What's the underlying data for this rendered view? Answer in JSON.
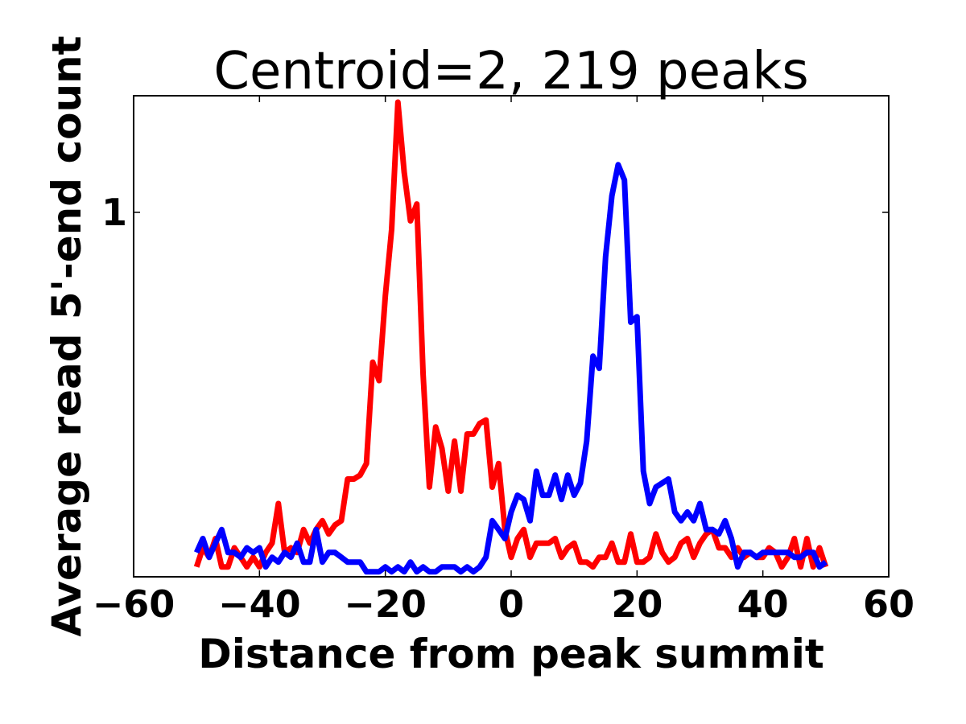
{
  "chart_data": {
    "type": "line",
    "title": "Centroid=2, 219 peaks",
    "xlabel": "Distance from peak summit",
    "ylabel": "Average read 5'-end count",
    "xlim": [
      -60,
      60
    ],
    "ylim": [
      0.42,
      1.32
    ],
    "y_scale": "log",
    "xticks": [
      -60,
      -40,
      -20,
      0,
      20,
      40,
      60
    ],
    "xtick_labels": [
      "−60",
      "−40",
      "−20",
      "0",
      "20",
      "40",
      "60"
    ],
    "yticks": [
      1
    ],
    "ytick_labels": [
      "1"
    ],
    "grid": false,
    "x": [
      -50,
      -49,
      -48,
      -47,
      -46,
      -45,
      -44,
      -43,
      -42,
      -41,
      -40,
      -39,
      -38,
      -37,
      -36,
      -35,
      -34,
      -33,
      -32,
      -31,
      -30,
      -29,
      -28,
      -27,
      -26,
      -25,
      -24,
      -23,
      -22,
      -21,
      -20,
      -19,
      -18,
      -17,
      -16,
      -15,
      -14,
      -13,
      -12,
      -11,
      -10,
      -9,
      -8,
      -7,
      -6,
      -5,
      -4,
      -3,
      -2,
      -1,
      0,
      1,
      2,
      3,
      4,
      5,
      6,
      7,
      8,
      9,
      10,
      11,
      12,
      13,
      14,
      15,
      16,
      17,
      18,
      19,
      20,
      21,
      22,
      23,
      24,
      25,
      26,
      27,
      28,
      29,
      30,
      31,
      32,
      33,
      34,
      35,
      36,
      37,
      38,
      39,
      40,
      41,
      42,
      43,
      44,
      45,
      46,
      47,
      48,
      49,
      50
    ],
    "series": [
      {
        "color": "#ff0000",
        "values": [
          0.43,
          0.45,
          0.44,
          0.46,
          0.43,
          0.43,
          0.45,
          0.44,
          0.43,
          0.44,
          0.43,
          0.445,
          0.455,
          0.5,
          0.445,
          0.45,
          0.445,
          0.47,
          0.455,
          0.47,
          0.48,
          0.465,
          0.475,
          0.48,
          0.53,
          0.53,
          0.535,
          0.55,
          0.7,
          0.67,
          0.82,
          0.96,
          1.3,
          1.1,
          0.98,
          1.02,
          0.68,
          0.52,
          0.6,
          0.57,
          0.515,
          0.58,
          0.515,
          0.59,
          0.59,
          0.605,
          0.61,
          0.52,
          0.55,
          0.47,
          0.44,
          0.46,
          0.47,
          0.44,
          0.455,
          0.455,
          0.455,
          0.46,
          0.44,
          0.45,
          0.455,
          0.435,
          0.435,
          0.43,
          0.44,
          0.44,
          0.455,
          0.435,
          0.435,
          0.465,
          0.435,
          0.435,
          0.44,
          0.465,
          0.445,
          0.435,
          0.44,
          0.455,
          0.46,
          0.44,
          0.455,
          0.465,
          0.47,
          0.45,
          0.45,
          0.44,
          0.45,
          0.44,
          0.445,
          0.44,
          0.44,
          0.45,
          0.445,
          0.43,
          0.44,
          0.46,
          0.43,
          0.46,
          0.43,
          0.45,
          0.43
        ]
      },
      {
        "color": "#0000ff",
        "values": [
          0.445,
          0.46,
          0.44,
          0.455,
          0.47,
          0.445,
          0.445,
          0.44,
          0.45,
          0.445,
          0.45,
          0.43,
          0.44,
          0.435,
          0.445,
          0.44,
          0.455,
          0.435,
          0.435,
          0.47,
          0.435,
          0.445,
          0.445,
          0.44,
          0.435,
          0.435,
          0.435,
          0.425,
          0.425,
          0.425,
          0.43,
          0.425,
          0.43,
          0.425,
          0.435,
          0.425,
          0.43,
          0.425,
          0.425,
          0.43,
          0.43,
          0.43,
          0.425,
          0.43,
          0.425,
          0.43,
          0.44,
          0.48,
          0.47,
          0.46,
          0.49,
          0.51,
          0.505,
          0.48,
          0.54,
          0.51,
          0.51,
          0.535,
          0.505,
          0.535,
          0.51,
          0.525,
          0.58,
          0.71,
          0.69,
          0.9,
          1.04,
          1.12,
          1.08,
          0.77,
          0.78,
          0.54,
          0.5,
          0.52,
          0.525,
          0.53,
          0.49,
          0.48,
          0.49,
          0.48,
          0.5,
          0.47,
          0.47,
          0.465,
          0.48,
          0.46,
          0.43,
          0.445,
          0.445,
          0.44,
          0.445,
          0.445,
          0.445,
          0.445,
          0.445,
          0.44,
          0.44,
          0.445,
          0.445,
          0.43,
          0.435
        ]
      }
    ]
  }
}
